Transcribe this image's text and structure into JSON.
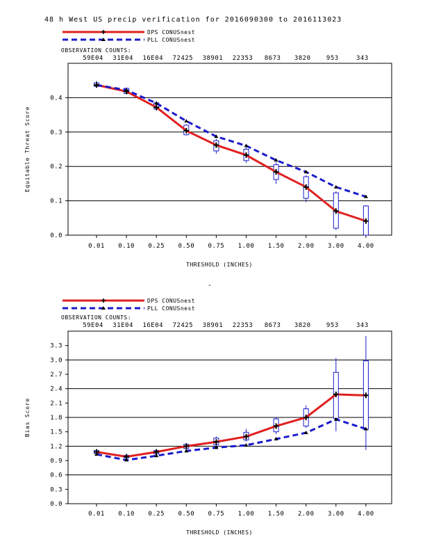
{
  "title": "48 h West US precip verification for 2016090300 to 2016113023",
  "dash_mark": "-",
  "chart_data": [
    {
      "type": "line",
      "ylabel": "Equitable Threat Score",
      "xlabel": "THRESHOLD (INCHES)",
      "categories": [
        "0.01",
        "0.10",
        "0.25",
        "0.50",
        "0.75",
        "1.00",
        "1.50",
        "2.00",
        "3.00",
        "4.00"
      ],
      "obs_label": "OBSERVATION COUNTS:",
      "obs_counts": [
        "59E04",
        "31E04",
        "16E04",
        "72425",
        "38901",
        "22353",
        "8673",
        "3820",
        "953",
        "343"
      ],
      "ylim": [
        0,
        0.5
      ],
      "yticks": [
        0.0,
        0.1,
        0.2,
        0.3,
        0.4
      ],
      "ytick_labels": [
        "0.0",
        "0.1",
        "0.2",
        "0.3",
        "0.4"
      ],
      "grid": true,
      "legend_position": "top-left",
      "series": [
        {
          "name": "DPS CONUSnest",
          "color": "#e02020",
          "style": "solid",
          "marker": "plus",
          "values": [
            0.437,
            0.418,
            0.372,
            0.304,
            0.262,
            0.233,
            0.184,
            0.14,
            0.07,
            0.041
          ]
        },
        {
          "name": "PLL CONUSnest",
          "color": "#1a1acc",
          "style": "dashed",
          "marker": "triangle",
          "values": [
            0.437,
            0.422,
            0.384,
            0.332,
            0.287,
            0.26,
            0.218,
            0.184,
            0.14,
            0.112
          ]
        }
      ],
      "boxes": [
        {
          "low": 0.432,
          "q1": 0.433,
          "q3": 0.443,
          "high": 0.449
        },
        {
          "low": 0.41,
          "q1": 0.412,
          "q3": 0.427,
          "high": 0.43
        },
        {
          "low": 0.362,
          "q1": 0.367,
          "q3": 0.385,
          "high": 0.39
        },
        {
          "low": 0.29,
          "q1": 0.292,
          "q3": 0.32,
          "high": 0.322
        },
        {
          "low": 0.237,
          "q1": 0.245,
          "q3": 0.275,
          "high": 0.28
        },
        {
          "low": 0.21,
          "q1": 0.217,
          "q3": 0.25,
          "high": 0.255
        },
        {
          "low": 0.149,
          "q1": 0.162,
          "q3": 0.205,
          "high": 0.212
        },
        {
          "low": 0.096,
          "q1": 0.107,
          "q3": 0.17,
          "high": 0.175
        },
        {
          "low": 0.015,
          "q1": 0.02,
          "q3": 0.123,
          "high": 0.127
        },
        {
          "low": 0.0,
          "q1": 0.0,
          "q3": 0.085,
          "high": 0.087
        }
      ]
    },
    {
      "type": "line",
      "ylabel": "Bias Score",
      "xlabel": "THRESHOLD (INCHES)",
      "categories": [
        "0.01",
        "0.10",
        "0.25",
        "0.50",
        "0.75",
        "1.00",
        "1.50",
        "2.00",
        "3.00",
        "4.00"
      ],
      "obs_label": "OBSERVATION COUNTS:",
      "obs_counts": [
        "59E04",
        "31E04",
        "16E04",
        "72425",
        "38901",
        "22353",
        "8673",
        "3820",
        "953",
        "343"
      ],
      "ylim": [
        0,
        3.6
      ],
      "yticks": [
        0.0,
        0.3,
        0.6,
        0.9,
        1.2,
        1.5,
        1.8,
        2.1,
        2.4,
        2.7,
        3.0,
        3.3
      ],
      "ytick_labels": [
        "0.0",
        "0.3",
        "0.6",
        "0.9",
        "1.2",
        "1.5",
        "1.8",
        "2.1",
        "2.4",
        "2.7",
        "3.0",
        "3.3"
      ],
      "grid_lines": [
        0.6,
        1.2,
        1.8,
        2.4,
        3.0
      ],
      "grid": true,
      "legend_position": "top-left",
      "series": [
        {
          "name": "DPS CONUSnest",
          "color": "#e02020",
          "style": "solid",
          "marker": "plus",
          "values": [
            1.08,
            0.98,
            1.08,
            1.2,
            1.29,
            1.4,
            1.62,
            1.8,
            2.28,
            2.26
          ]
        },
        {
          "name": "PLL CONUSnest",
          "color": "#1a1acc",
          "style": "dashed",
          "marker": "triangle",
          "values": [
            1.03,
            0.91,
            1.0,
            1.1,
            1.17,
            1.22,
            1.35,
            1.48,
            1.76,
            1.56
          ]
        }
      ],
      "boxes": [
        {
          "low": 1.03,
          "q1": 1.05,
          "q3": 1.11,
          "high": 1.13
        },
        {
          "low": 0.95,
          "q1": 0.96,
          "q3": 1.01,
          "high": 1.02
        },
        {
          "low": 1.02,
          "q1": 1.04,
          "q3": 1.11,
          "high": 1.14
        },
        {
          "low": 1.13,
          "q1": 1.15,
          "q3": 1.24,
          "high": 1.26
        },
        {
          "low": 1.2,
          "q1": 1.23,
          "q3": 1.37,
          "high": 1.4
        },
        {
          "low": 1.3,
          "q1": 1.33,
          "q3": 1.49,
          "high": 1.56
        },
        {
          "low": 1.45,
          "q1": 1.5,
          "q3": 1.77,
          "high": 1.81
        },
        {
          "low": 1.58,
          "q1": 1.62,
          "q3": 1.98,
          "high": 2.05
        },
        {
          "low": 1.51,
          "q1": 1.78,
          "q3": 2.74,
          "high": 3.04
        },
        {
          "low": 1.12,
          "q1": 1.55,
          "q3": 2.98,
          "high": 3.5
        }
      ]
    }
  ]
}
